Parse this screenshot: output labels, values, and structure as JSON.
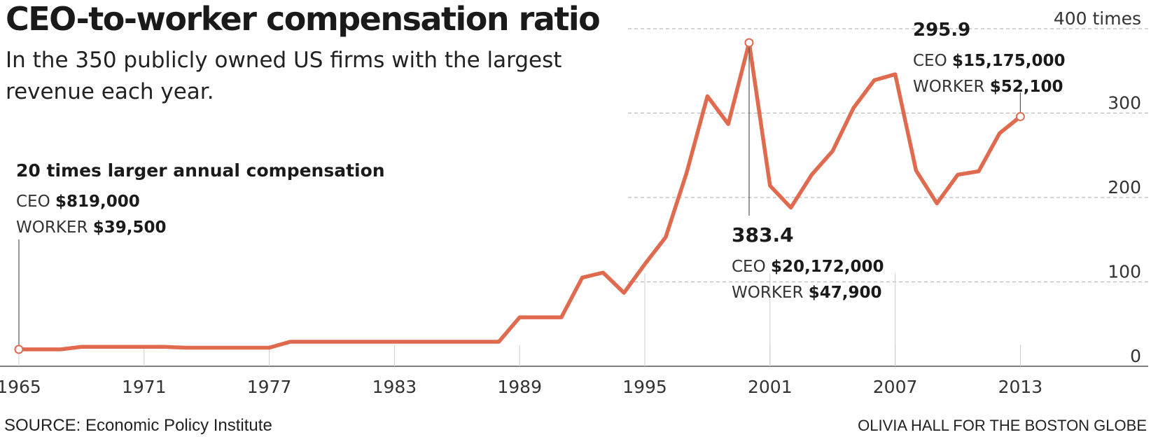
{
  "title": "CEO-to-worker compensation ratio",
  "subtitle": "In the 350 publicly owned US firms with the largest revenue each year.",
  "source": "SOURCE: Economic Policy Institute",
  "credit": "OLIVIA HALL FOR THE BOSTON GLOBE",
  "colors": {
    "line": "#e06a4e",
    "grid": "#bbbbbb",
    "text": "#222222"
  },
  "annotations": [
    {
      "year": 1965,
      "value": 20,
      "headline": "20 times larger annual compensation",
      "ceo_label": "CEO",
      "ceo_value": "$819,000",
      "worker_label": "WORKER",
      "worker_value": "$39,500"
    },
    {
      "year": 2000,
      "value": 383.4,
      "headline": "383.4",
      "ceo_label": "CEO",
      "ceo_value": "$20,172,000",
      "worker_label": "WORKER",
      "worker_value": "$47,900"
    },
    {
      "year": 2013,
      "value": 295.9,
      "headline": "295.9",
      "ceo_label": "CEO",
      "ceo_value": "$15,175,000",
      "worker_label": "WORKER",
      "worker_value": "$52,100"
    }
  ],
  "chart_data": {
    "type": "line",
    "title": "CEO-to-worker compensation ratio",
    "subtitle": "In the 350 publicly owned US firms with the largest revenue each year.",
    "xlabel": "",
    "ylabel": "",
    "xlim": [
      1965,
      2020
    ],
    "ylim": [
      0,
      400
    ],
    "grid": true,
    "x_ticks": [
      1965,
      1971,
      1977,
      1983,
      1989,
      1995,
      2001,
      2007,
      2013
    ],
    "y_ticks": [
      {
        "value": 400,
        "label": "400 times"
      },
      {
        "value": 300,
        "label": "300"
      },
      {
        "value": 200,
        "label": "200"
      },
      {
        "value": 100,
        "label": "100"
      },
      {
        "value": 0,
        "label": "0"
      }
    ],
    "x": [
      1965,
      1966,
      1967,
      1968,
      1969,
      1970,
      1971,
      1972,
      1973,
      1974,
      1975,
      1976,
      1977,
      1978,
      1979,
      1980,
      1981,
      1982,
      1983,
      1984,
      1985,
      1986,
      1987,
      1988,
      1989,
      1990,
      1991,
      1992,
      1993,
      1994,
      1995,
      1996,
      1997,
      1998,
      1999,
      2000,
      2001,
      2002,
      2003,
      2004,
      2005,
      2006,
      2007,
      2008,
      2009,
      2010,
      2011,
      2012,
      2013
    ],
    "series": [
      {
        "values": [
          20,
          20,
          20,
          23,
          23,
          23,
          23,
          23,
          22,
          22,
          22,
          22,
          22,
          29,
          29,
          29,
          29,
          29,
          29,
          29,
          29,
          29,
          29,
          29,
          58,
          58,
          58,
          105,
          111,
          87,
          121,
          153,
          229,
          320,
          287,
          383.4,
          214,
          188,
          227,
          255,
          306,
          339,
          346,
          232,
          193,
          227,
          231,
          276,
          295.9
        ]
      }
    ]
  }
}
